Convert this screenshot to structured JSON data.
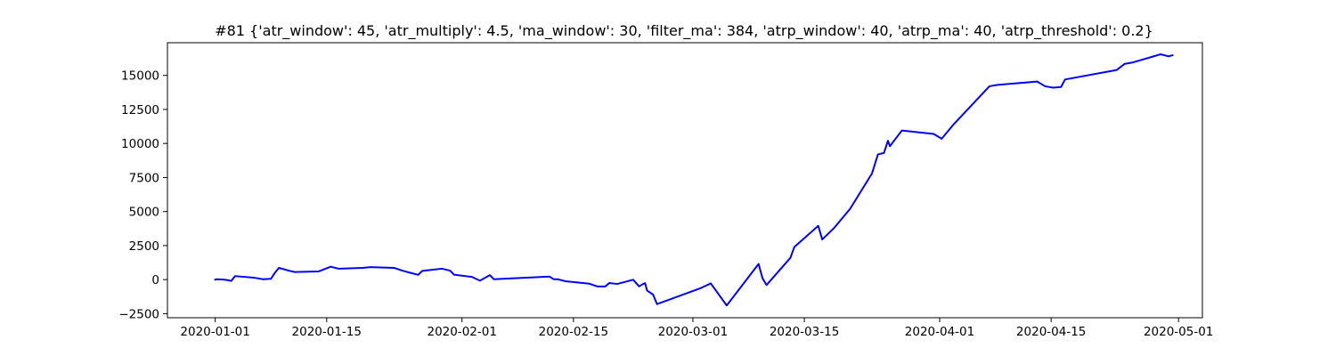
{
  "chart_data": {
    "type": "line",
    "title": "#81 {'atr_window': 45, 'atr_multiply': 4.5, 'ma_window': 30, 'filter_ma': 384, 'atrp_window': 40, 'atrp_ma': 40, 'atrp_threshold': 0.2}",
    "xlabel": "",
    "ylabel": "",
    "x_axis": "date",
    "xlim": [
      "2019-12-26",
      "2020-05-04"
    ],
    "ylim": [
      -2800,
      17400
    ],
    "x_ticks": [
      {
        "value": "2020-01-01",
        "label": "2020-01-01"
      },
      {
        "value": "2020-01-15",
        "label": "2020-01-15"
      },
      {
        "value": "2020-02-01",
        "label": "2020-02-01"
      },
      {
        "value": "2020-02-15",
        "label": "2020-02-15"
      },
      {
        "value": "2020-03-01",
        "label": "2020-03-01"
      },
      {
        "value": "2020-03-15",
        "label": "2020-03-15"
      },
      {
        "value": "2020-04-01",
        "label": "2020-04-01"
      },
      {
        "value": "2020-04-15",
        "label": "2020-04-15"
      },
      {
        "value": "2020-05-01",
        "label": "2020-05-01"
      }
    ],
    "y_ticks": [
      {
        "value": -2500,
        "label": "−2500"
      },
      {
        "value": 0,
        "label": "0"
      },
      {
        "value": 2500,
        "label": "2500"
      },
      {
        "value": 5000,
        "label": "5000"
      },
      {
        "value": 7500,
        "label": "7500"
      },
      {
        "value": 10000,
        "label": "10000"
      },
      {
        "value": 12500,
        "label": "12500"
      },
      {
        "value": 15000,
        "label": "15000"
      }
    ],
    "grid": false,
    "legend": "none",
    "series": [
      {
        "color": "#0000ff",
        "points": [
          [
            "2020-01-01 00:00",
            0
          ],
          [
            "2020-01-01 06:00",
            30
          ],
          [
            "2020-01-02 00:00",
            0
          ],
          [
            "2020-01-02 12:00",
            -30
          ],
          [
            "2020-01-03 00:00",
            -100
          ],
          [
            "2020-01-03 12:00",
            260
          ],
          [
            "2020-01-06 00:00",
            130
          ],
          [
            "2020-01-07 00:00",
            30
          ],
          [
            "2020-01-08 00:00",
            60
          ],
          [
            "2020-01-08 12:00",
            500
          ],
          [
            "2020-01-09 00:00",
            860
          ],
          [
            "2020-01-10 12:00",
            620
          ],
          [
            "2020-01-11 00:00",
            560
          ],
          [
            "2020-01-14 00:00",
            600
          ],
          [
            "2020-01-15 12:00",
            950
          ],
          [
            "2020-01-16 12:00",
            800
          ],
          [
            "2020-01-19 12:00",
            860
          ],
          [
            "2020-01-20 12:00",
            920
          ],
          [
            "2020-01-23 12:00",
            860
          ],
          [
            "2020-01-24 12:00",
            660
          ],
          [
            "2020-01-25 12:00",
            500
          ],
          [
            "2020-01-26 12:00",
            350
          ],
          [
            "2020-01-27 00:00",
            640
          ],
          [
            "2020-01-29 12:00",
            800
          ],
          [
            "2020-01-30 12:00",
            660
          ],
          [
            "2020-01-31 00:00",
            360
          ],
          [
            "2020-02-02 06:00",
            200
          ],
          [
            "2020-02-03 06:00",
            -80
          ],
          [
            "2020-02-04 12:00",
            330
          ],
          [
            "2020-02-05 00:00",
            30
          ],
          [
            "2020-02-12 00:00",
            220
          ],
          [
            "2020-02-12 12:00",
            30
          ],
          [
            "2020-02-13 00:00",
            30
          ],
          [
            "2020-02-14 00:00",
            -120
          ],
          [
            "2020-02-17 00:00",
            -300
          ],
          [
            "2020-02-18 00:00",
            -500
          ],
          [
            "2020-02-19 00:00",
            -500
          ],
          [
            "2020-02-19 12:00",
            -250
          ],
          [
            "2020-02-20 12:00",
            -320
          ],
          [
            "2020-02-22 12:00",
            -10
          ],
          [
            "2020-02-23 06:00",
            -500
          ],
          [
            "2020-02-23 18:00",
            -320
          ],
          [
            "2020-02-24 00:00",
            -260
          ],
          [
            "2020-02-24 06:00",
            -800
          ],
          [
            "2020-02-25 00:00",
            -1100
          ],
          [
            "2020-02-25 12:00",
            -1800
          ],
          [
            "2020-03-02 00:00",
            -620
          ],
          [
            "2020-03-03 06:00",
            -280
          ],
          [
            "2020-03-05 06:00",
            -1900
          ],
          [
            "2020-03-09 06:00",
            1150
          ],
          [
            "2020-03-09 18:00",
            100
          ],
          [
            "2020-03-10 06:00",
            -400
          ],
          [
            "2020-03-13 06:00",
            1600
          ],
          [
            "2020-03-13 18:00",
            2400
          ],
          [
            "2020-03-16 18:00",
            3950
          ],
          [
            "2020-03-17 06:00",
            2950
          ],
          [
            "2020-03-18 18:00",
            3800
          ],
          [
            "2020-03-20 18:00",
            5200
          ],
          [
            "2020-03-23 12:00",
            7800
          ],
          [
            "2020-03-24 06:00",
            9200
          ],
          [
            "2020-03-25 00:00",
            9300
          ],
          [
            "2020-03-25 12:00",
            10200
          ],
          [
            "2020-03-25 18:00",
            9800
          ],
          [
            "2020-03-27 06:00",
            10950
          ],
          [
            "2020-03-31 06:00",
            10700
          ],
          [
            "2020-04-01 06:00",
            10350
          ],
          [
            "2020-04-02 18:00",
            11400
          ],
          [
            "2020-04-07 06:00",
            14200
          ],
          [
            "2020-04-08 06:00",
            14300
          ],
          [
            "2020-04-13 06:00",
            14550
          ],
          [
            "2020-04-14 06:00",
            14200
          ],
          [
            "2020-04-15 06:00",
            14100
          ],
          [
            "2020-04-16 06:00",
            14150
          ],
          [
            "2020-04-16 18:00",
            14700
          ],
          [
            "2020-04-23 06:00",
            15400
          ],
          [
            "2020-04-24 06:00",
            15850
          ],
          [
            "2020-04-25 06:00",
            15950
          ],
          [
            "2020-04-28 18:00",
            16550
          ],
          [
            "2020-04-29 18:00",
            16400
          ],
          [
            "2020-04-30 06:00",
            16480
          ]
        ]
      }
    ]
  }
}
